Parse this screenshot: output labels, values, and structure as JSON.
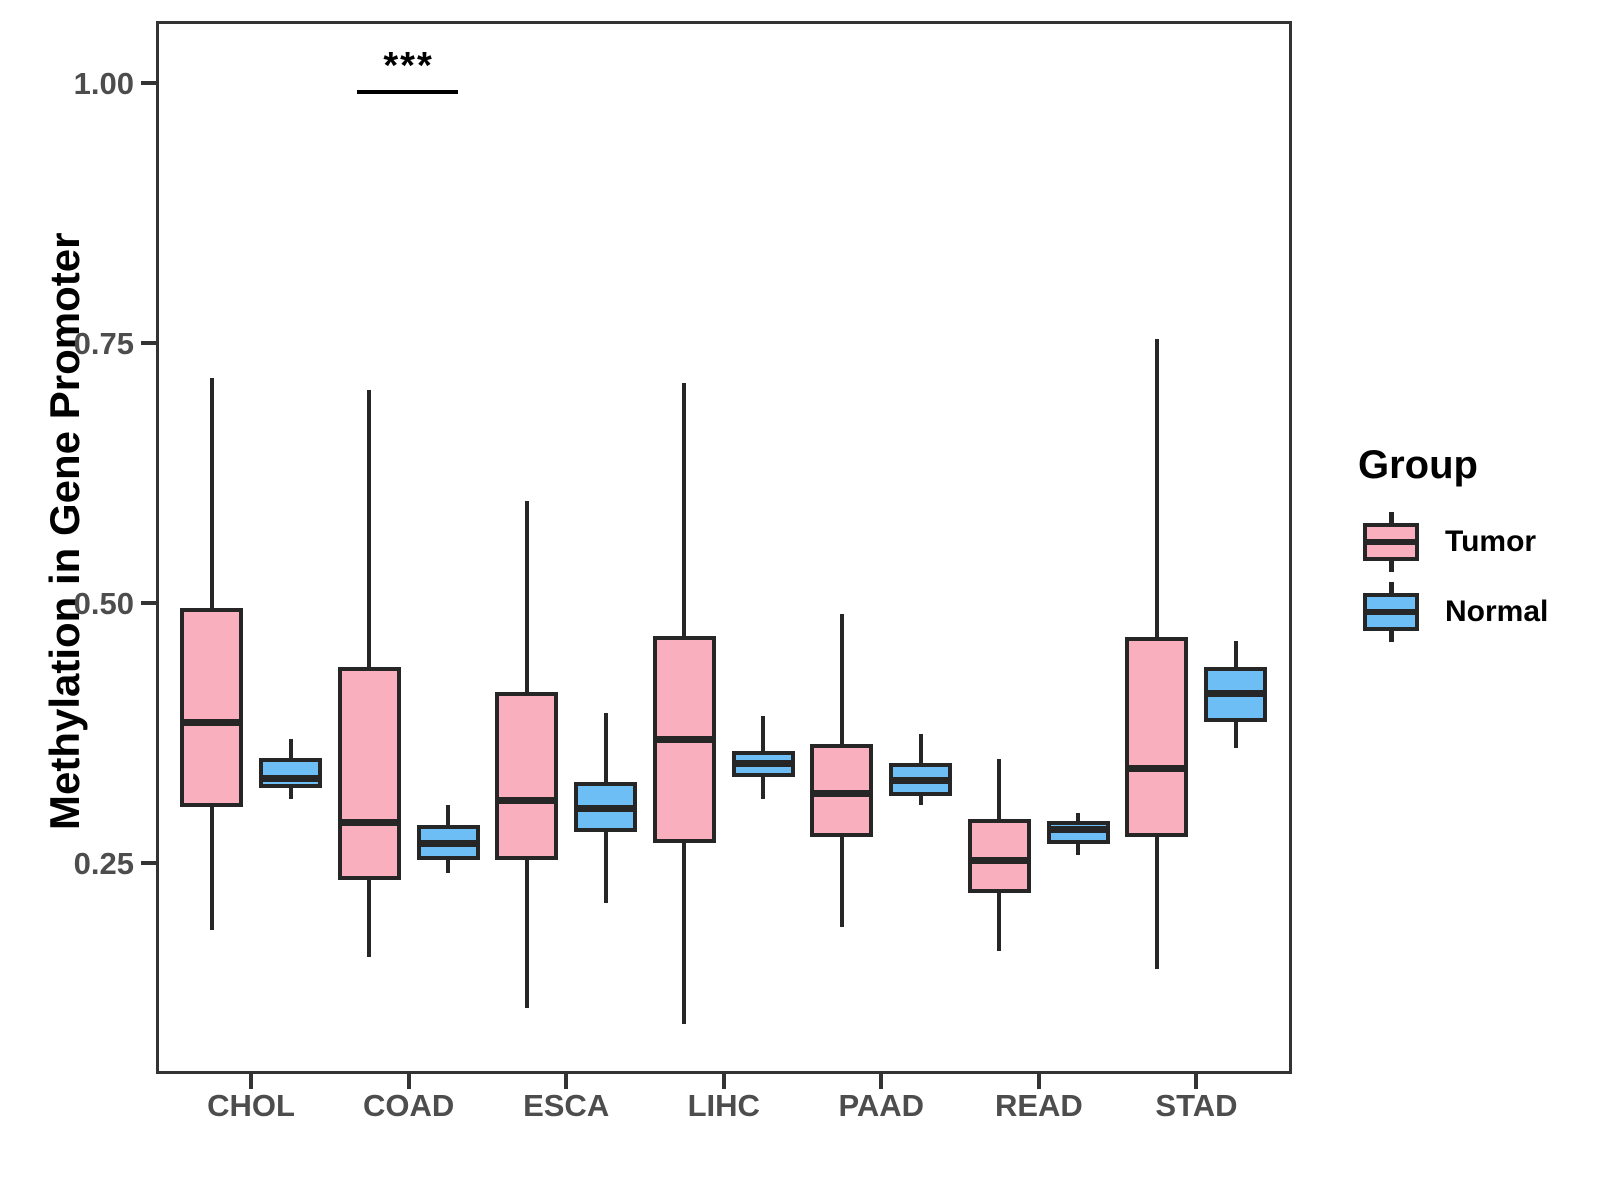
{
  "figure": {
    "background": "#ffffff",
    "axis_text_color": "#4d4d4d",
    "panel_border_color": "#333333",
    "box_stroke_color": "#262626"
  },
  "chart_data": {
    "type": "boxplot",
    "title": "",
    "xlabel": "",
    "ylabel": "Methylation in Gene Promoter",
    "categories": [
      "CHOL",
      "COAD",
      "ESCA",
      "LIHC",
      "PAAD",
      "READ",
      "STAD"
    ],
    "y_ticks": [
      1.0,
      0.75,
      0.5,
      0.25
    ],
    "y_tick_labels": [
      "1.00",
      "0.75",
      "0.50",
      "0.25"
    ],
    "ylim": [
      0.05,
      1.06
    ],
    "grid": "off",
    "legend_position": "right",
    "series": [
      {
        "name": "Tumor",
        "color": "#FAAFBE",
        "boxes": [
          {
            "category": "CHOL",
            "whisker_low": 0.186,
            "q1": 0.304,
            "median": 0.386,
            "q3": 0.495,
            "whisker_high": 0.716
          },
          {
            "category": "COAD",
            "whisker_low": 0.16,
            "q1": 0.234,
            "median": 0.289,
            "q3": 0.438,
            "whisker_high": 0.705
          },
          {
            "category": "ESCA",
            "whisker_low": 0.111,
            "q1": 0.253,
            "median": 0.311,
            "q3": 0.414,
            "whisker_high": 0.598
          },
          {
            "category": "LIHC",
            "whisker_low": 0.095,
            "q1": 0.269,
            "median": 0.369,
            "q3": 0.468,
            "whisker_high": 0.712
          },
          {
            "category": "PAAD",
            "whisker_low": 0.188,
            "q1": 0.275,
            "median": 0.317,
            "q3": 0.364,
            "whisker_high": 0.489
          },
          {
            "category": "READ",
            "whisker_low": 0.165,
            "q1": 0.221,
            "median": 0.253,
            "q3": 0.292,
            "whisker_high": 0.35
          },
          {
            "category": "STAD",
            "whisker_low": 0.148,
            "q1": 0.275,
            "median": 0.341,
            "q3": 0.467,
            "whisker_high": 0.754
          }
        ]
      },
      {
        "name": "Normal",
        "color": "#6DBEF5",
        "boxes": [
          {
            "category": "CHOL",
            "whisker_low": 0.312,
            "q1": 0.322,
            "median": 0.332,
            "q3": 0.351,
            "whisker_high": 0.369
          },
          {
            "category": "COAD",
            "whisker_low": 0.24,
            "q1": 0.253,
            "median": 0.269,
            "q3": 0.287,
            "whisker_high": 0.306
          },
          {
            "category": "ESCA",
            "whisker_low": 0.212,
            "q1": 0.28,
            "median": 0.303,
            "q3": 0.328,
            "whisker_high": 0.394
          },
          {
            "category": "LIHC",
            "whisker_low": 0.312,
            "q1": 0.333,
            "median": 0.346,
            "q3": 0.358,
            "whisker_high": 0.391
          },
          {
            "category": "PAAD",
            "whisker_low": 0.306,
            "q1": 0.314,
            "median": 0.33,
            "q3": 0.346,
            "whisker_high": 0.374
          },
          {
            "category": "READ",
            "whisker_low": 0.258,
            "q1": 0.268,
            "median": 0.283,
            "q3": 0.29,
            "whisker_high": 0.298
          },
          {
            "category": "STAD",
            "whisker_low": 0.361,
            "q1": 0.386,
            "median": 0.413,
            "q3": 0.438,
            "whisker_high": 0.463
          }
        ]
      }
    ],
    "significance": {
      "label": "***",
      "category": "COAD",
      "compares": [
        "Tumor",
        "Normal"
      ]
    }
  },
  "legend": {
    "title": "Group",
    "entries": [
      {
        "label": "Tumor",
        "color": "#FAAFBE"
      },
      {
        "label": "Normal",
        "color": "#6DBEF5"
      }
    ]
  }
}
